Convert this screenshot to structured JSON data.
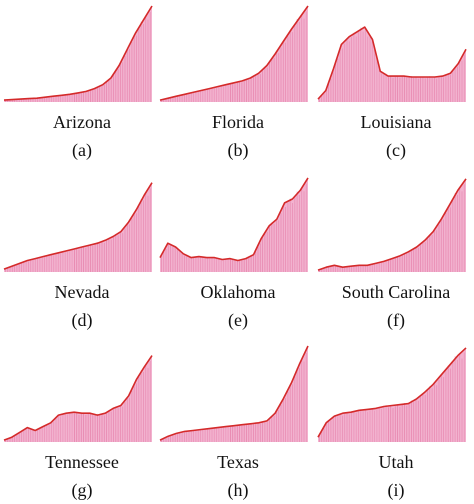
{
  "colors": {
    "line": "#d42a2a",
    "fill": "#f2b2cf",
    "bar": "#e06a9a"
  },
  "chart_data": [
    {
      "type": "area",
      "state": "Arizona",
      "sub": "(a)",
      "y": [
        0.02,
        0.025,
        0.03,
        0.035,
        0.04,
        0.05,
        0.06,
        0.07,
        0.08,
        0.095,
        0.11,
        0.14,
        0.18,
        0.25,
        0.38,
        0.55,
        0.72,
        0.86,
        1.0
      ]
    },
    {
      "type": "area",
      "state": "Florida",
      "sub": "(b)",
      "y": [
        0.02,
        0.04,
        0.06,
        0.08,
        0.1,
        0.12,
        0.14,
        0.16,
        0.18,
        0.2,
        0.22,
        0.25,
        0.3,
        0.38,
        0.5,
        0.63,
        0.76,
        0.88,
        1.0
      ]
    },
    {
      "type": "area",
      "state": "Louisiana",
      "sub": "(c)",
      "y": [
        0.03,
        0.12,
        0.35,
        0.6,
        0.68,
        0.73,
        0.78,
        0.65,
        0.32,
        0.27,
        0.27,
        0.27,
        0.26,
        0.26,
        0.26,
        0.26,
        0.27,
        0.3,
        0.4,
        0.55
      ]
    },
    {
      "type": "area",
      "state": "Nevada",
      "sub": "(d)",
      "y": [
        0.03,
        0.06,
        0.09,
        0.12,
        0.14,
        0.16,
        0.18,
        0.2,
        0.22,
        0.24,
        0.26,
        0.28,
        0.3,
        0.33,
        0.37,
        0.42,
        0.52,
        0.65,
        0.8,
        0.93
      ]
    },
    {
      "type": "area",
      "state": "Oklahoma",
      "sub": "(e)",
      "y": [
        0.15,
        0.3,
        0.26,
        0.19,
        0.15,
        0.16,
        0.15,
        0.15,
        0.13,
        0.14,
        0.12,
        0.14,
        0.18,
        0.35,
        0.48,
        0.55,
        0.72,
        0.76,
        0.85,
        0.98
      ]
    },
    {
      "type": "area",
      "state": "South Carolina",
      "sub": "(f)",
      "y": [
        0.02,
        0.05,
        0.07,
        0.05,
        0.06,
        0.07,
        0.07,
        0.09,
        0.11,
        0.14,
        0.17,
        0.21,
        0.26,
        0.33,
        0.42,
        0.55,
        0.7,
        0.85,
        0.97
      ]
    },
    {
      "type": "area",
      "state": "Tennessee",
      "sub": "(g)",
      "y": [
        0.02,
        0.05,
        0.1,
        0.15,
        0.12,
        0.16,
        0.2,
        0.28,
        0.3,
        0.31,
        0.3,
        0.3,
        0.28,
        0.3,
        0.35,
        0.38,
        0.48,
        0.65,
        0.78,
        0.9
      ]
    },
    {
      "type": "area",
      "state": "Texas",
      "sub": "(h)",
      "y": [
        0.02,
        0.06,
        0.09,
        0.11,
        0.12,
        0.13,
        0.14,
        0.15,
        0.16,
        0.17,
        0.18,
        0.19,
        0.2,
        0.22,
        0.3,
        0.45,
        0.62,
        0.82,
        1.0
      ]
    },
    {
      "type": "area",
      "state": "Utah",
      "sub": "(i)",
      "y": [
        0.05,
        0.2,
        0.27,
        0.3,
        0.31,
        0.33,
        0.34,
        0.35,
        0.37,
        0.38,
        0.39,
        0.4,
        0.45,
        0.52,
        0.6,
        0.7,
        0.8,
        0.9,
        0.98
      ]
    }
  ]
}
